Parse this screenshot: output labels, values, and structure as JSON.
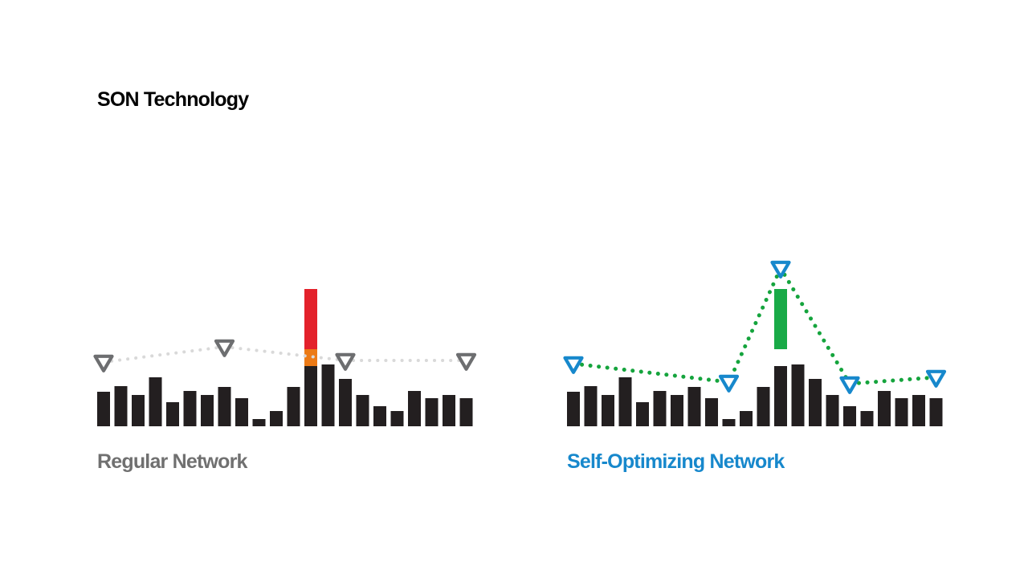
{
  "title": "SON Technology",
  "colors": {
    "bar": "#231f20",
    "regular_line": "#d9d9d9",
    "regular_marker": "#6d6e70",
    "regular_label": "#707070",
    "son_line": "#15a43d",
    "son_marker": "#1788cc",
    "son_label": "#1788cc",
    "overload": "#e3212b",
    "overflow": "#ec7a16",
    "boost": "#19aa47"
  },
  "bar_levels": [
    43,
    50,
    39,
    61,
    30,
    44,
    39,
    49,
    35,
    9,
    19,
    49,
    75,
    77,
    59,
    39,
    25,
    19,
    44,
    35,
    39,
    35
  ],
  "panels": [
    {
      "name": "regular",
      "label": "Regular Network",
      "marker_bars": [
        0,
        7,
        14,
        21
      ],
      "marker_levels": [
        80,
        99,
        82,
        82
      ],
      "spike_bar": 12,
      "spike_segments": [
        {
          "color_key": "overflow",
          "from": 75,
          "to": 96
        },
        {
          "color_key": "overload",
          "from": 96,
          "to": 171
        }
      ]
    },
    {
      "name": "son",
      "label": "Self-Optimizing Network",
      "marker_bars": [
        0,
        9,
        12,
        16,
        21
      ],
      "marker_levels": [
        78,
        55,
        197,
        53,
        61
      ],
      "spike_bar": 12,
      "spike_segments": [
        {
          "color_key": "boost",
          "from": 96,
          "to": 171
        }
      ]
    }
  ]
}
